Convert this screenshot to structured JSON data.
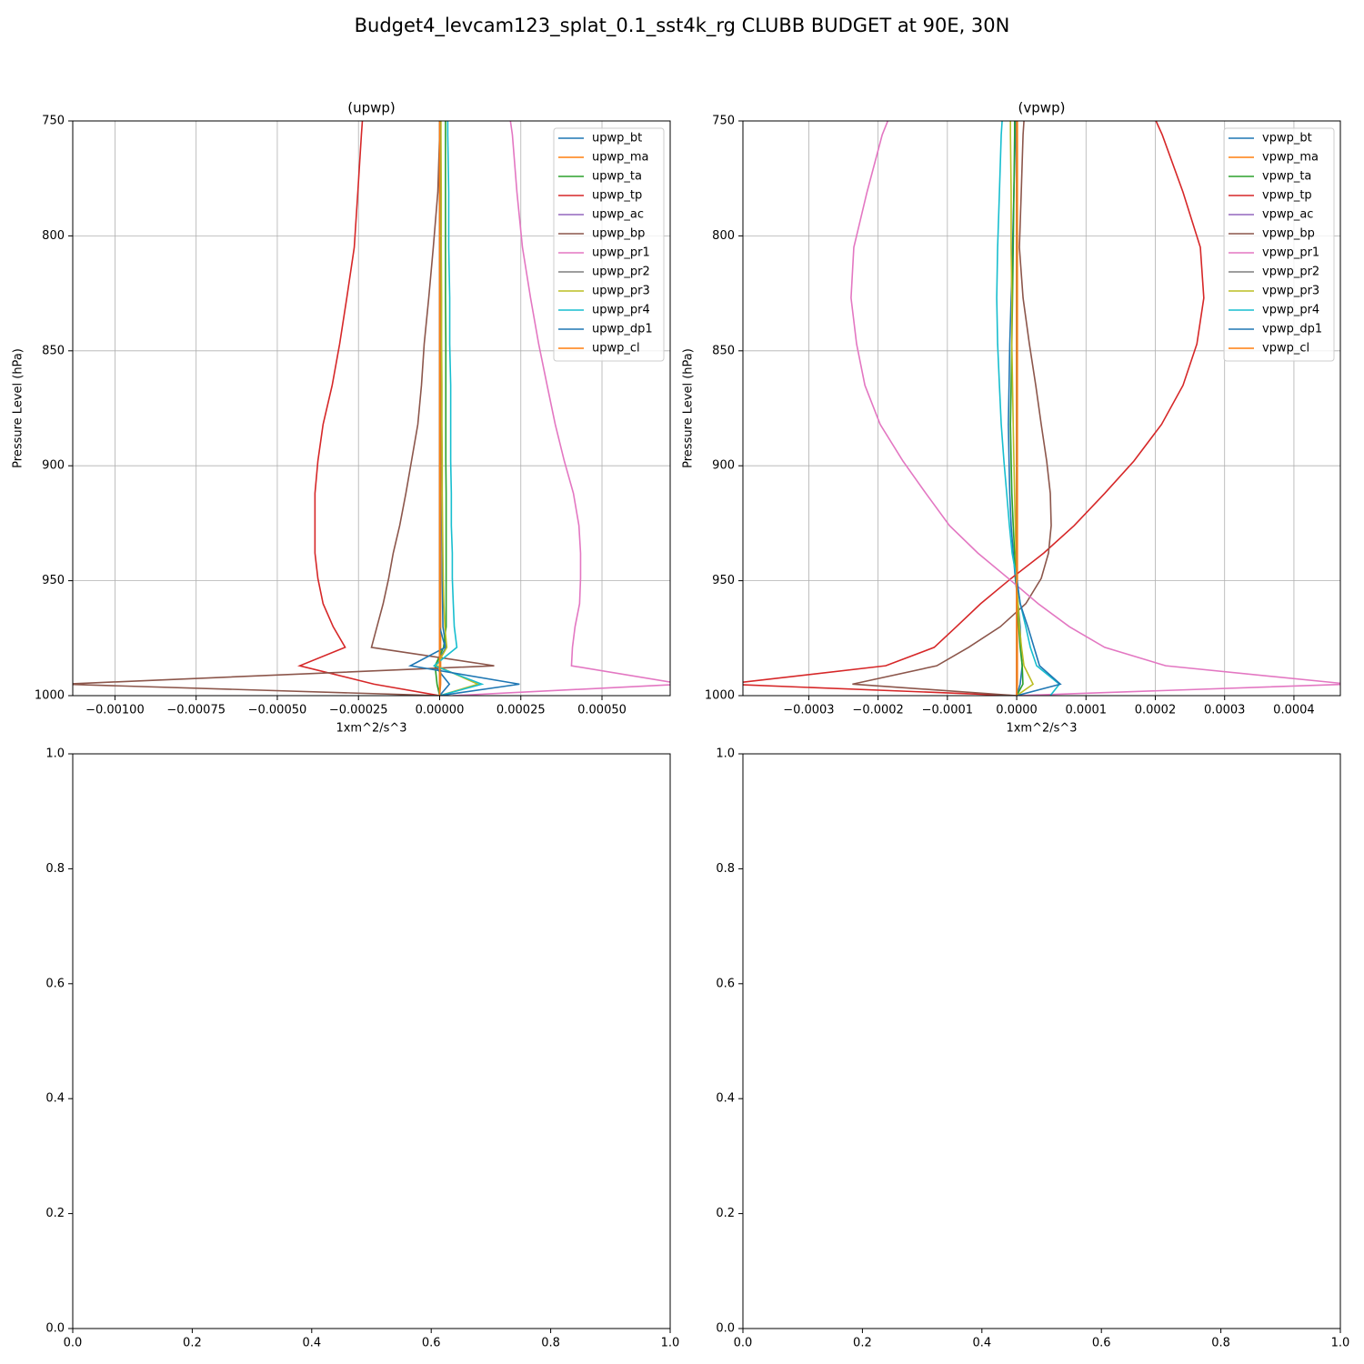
{
  "title": "Budget4_levcam123_splat_0.1_sst4k_rg CLUBB BUDGET at 90E, 30N",
  "chart_data": [
    {
      "type": "line",
      "title": "(upwp)",
      "xlabel": "1xm^2/s^3",
      "ylabel": "Pressure Level (hPa)",
      "xlim": [
        -0.00113,
        0.00071
      ],
      "ylim": [
        1000,
        750
      ],
      "xticks": [
        {
          "value": -0.001,
          "label": "−0.00100"
        },
        {
          "value": -0.00075,
          "label": "−0.00075"
        },
        {
          "value": -0.0005,
          "label": "−0.00050"
        },
        {
          "value": -0.00025,
          "label": "−0.00025"
        },
        {
          "value": 0,
          "label": "0.00000"
        },
        {
          "value": 0.00025,
          "label": "0.00025"
        },
        {
          "value": 0.0005,
          "label": "0.00050"
        }
      ],
      "yticks": [
        750,
        800,
        850,
        900,
        950,
        1000
      ],
      "grid": true,
      "legend": "upper right",
      "y": [
        750,
        756,
        781,
        805,
        827,
        847,
        865,
        882,
        898,
        912,
        926,
        938,
        949,
        960,
        970,
        979,
        987,
        995,
        1000
      ],
      "series": [
        {
          "name": "upwp_bt",
          "color": "#1f77b4",
          "values": [
            3e-06,
            3e-06,
            3e-06,
            4e-06,
            4e-06,
            5e-06,
            5e-06,
            6e-06,
            6e-06,
            7e-06,
            7e-06,
            8e-06,
            8e-06,
            9e-06,
            1e-05,
            2e-05,
            -1.5e-05,
            3e-05,
            0
          ]
        },
        {
          "name": "upwp_ma",
          "color": "#ff7f0e",
          "values": [
            3e-06,
            3e-06,
            3e-06,
            3e-06,
            3e-06,
            3e-06,
            3e-06,
            3e-06,
            3e-06,
            3e-06,
            3e-06,
            3e-06,
            3e-06,
            3e-06,
            3e-06,
            3e-06,
            3e-06,
            3e-06,
            0
          ]
        },
        {
          "name": "upwp_ta",
          "color": "#2ca02c",
          "values": [
            1.8e-05,
            1.8e-05,
            1.8e-05,
            1.8e-05,
            1.8e-05,
            1.9e-05,
            1.9e-05,
            1.9e-05,
            1.9e-05,
            2e-05,
            2e-05,
            2e-05,
            2e-05,
            2e-05,
            2e-05,
            1.2e-05,
            -1.4e-05,
            -8e-06,
            0
          ]
        },
        {
          "name": "upwp_tp",
          "color": "#d62728",
          "values": [
            -0.000238,
            -0.000241,
            -0.000252,
            -0.000263,
            -0.000286,
            -0.000308,
            -0.000331,
            -0.000359,
            -0.000375,
            -0.000384,
            -0.000384,
            -0.000384,
            -0.000375,
            -0.000359,
            -0.000328,
            -0.000291,
            -0.000431,
            -0.000202,
            0
          ]
        },
        {
          "name": "upwp_ac",
          "color": "#9467bd",
          "values": [
            0,
            0,
            0,
            0,
            0,
            0,
            0,
            0,
            0,
            0,
            0,
            0,
            0,
            0,
            0,
            0,
            0,
            0,
            0
          ]
        },
        {
          "name": "upwp_bp",
          "color": "#8c564b",
          "values": [
            3e-06,
            0,
            -5.6e-06,
            -1.96e-05,
            -3.36e-05,
            -4.76e-05,
            -5.6e-05,
            -6.72e-05,
            -8.68e-05,
            -0.000104,
            -0.000123,
            -0.000143,
            -0.000157,
            -0.000174,
            -0.000193,
            -0.00021,
            0.000168,
            -0.00116,
            0
          ]
        },
        {
          "name": "upwp_pr1",
          "color": "#e377c2",
          "values": [
            0.000218,
            0.000224,
            0.000238,
            0.000255,
            0.00028,
            0.000305,
            0.000331,
            0.000356,
            0.000384,
            0.000412,
            0.000429,
            0.000434,
            0.000434,
            0.000431,
            0.000417,
            0.000409,
            0.000406,
            0.00075,
            4e-05
          ]
        },
        {
          "name": "upwp_pr2",
          "color": "#7f7f7f",
          "values": [
            0,
            0,
            0,
            0,
            0,
            0,
            0,
            0,
            0,
            0,
            0,
            0,
            0,
            0,
            0,
            0,
            0,
            0,
            0
          ]
        },
        {
          "name": "upwp_pr3",
          "color": "#bcbd22",
          "values": [
            4e-06,
            4e-06,
            5e-06,
            5e-06,
            6e-06,
            6e-06,
            7e-06,
            7e-06,
            8e-06,
            8e-06,
            9e-06,
            1e-05,
            1.1e-05,
            1.3e-05,
            1.6e-05,
            2.2e-05,
            -1e-05,
            0.000118,
            0
          ]
        },
        {
          "name": "upwp_pr4",
          "color": "#17becf",
          "values": [
            2.5e-05,
            2.5e-05,
            2.8e-05,
            2.8e-05,
            3.1e-05,
            3.1e-05,
            3.4e-05,
            3.4e-05,
            3.4e-05,
            3.6e-05,
            3.6e-05,
            3.9e-05,
            3.9e-05,
            4.2e-05,
            4.5e-05,
            5.3e-05,
            -1.7e-05,
            0.00013,
            0
          ]
        },
        {
          "name": "upwp_dp1",
          "color": "#1f77b4",
          "values": [
            0,
            0,
            0,
            0,
            0,
            0,
            0,
            0,
            0,
            0,
            0,
            0,
            0,
            0,
            0,
            1.7e-05,
            -9e-05,
            0.000246,
            0
          ]
        },
        {
          "name": "upwp_cl",
          "color": "#ff7f0e",
          "values": [
            0,
            0,
            0,
            0,
            0,
            0,
            0,
            0,
            0,
            0,
            0,
            0,
            0,
            0,
            0,
            0,
            0,
            0,
            0
          ]
        }
      ]
    },
    {
      "type": "line",
      "title": "(vpwp)",
      "xlabel": "1xm^2/s^3",
      "ylabel": "Pressure Level (hPa)",
      "xlim": [
        -0.000395,
        0.000467
      ],
      "ylim": [
        1000,
        750
      ],
      "xticks": [
        {
          "value": -0.0003,
          "label": "−0.0003"
        },
        {
          "value": -0.0002,
          "label": "−0.0002"
        },
        {
          "value": -0.0001,
          "label": "−0.0001"
        },
        {
          "value": 0,
          "label": "0.0000"
        },
        {
          "value": 0.0001,
          "label": "0.0001"
        },
        {
          "value": 0.0002,
          "label": "0.0002"
        },
        {
          "value": 0.0003,
          "label": "0.0003"
        },
        {
          "value": 0.0004,
          "label": "0.0004"
        }
      ],
      "yticks": [
        750,
        800,
        850,
        900,
        950,
        1000
      ],
      "grid": true,
      "legend": "upper right",
      "y": [
        750,
        756,
        781,
        805,
        827,
        847,
        865,
        882,
        898,
        912,
        926,
        938,
        949,
        960,
        970,
        979,
        987,
        995,
        1000
      ],
      "series": [
        {
          "name": "vpwp_bt",
          "color": "#1f77b4",
          "values": [
            -2e-06,
            -2e-06,
            -4e-06,
            -6e-06,
            -8e-06,
            -1e-05,
            -1.1e-05,
            -1.2e-05,
            -1.1e-05,
            -1e-05,
            -8e-06,
            -5e-06,
            -2e-06,
            2e-06,
            5e-06,
            6e-06,
            8e-06,
            5e-06,
            0
          ]
        },
        {
          "name": "vpwp_ma",
          "color": "#ff7f0e",
          "values": [
            1e-06,
            1e-06,
            1e-06,
            1e-06,
            1e-06,
            1e-06,
            1e-06,
            1e-06,
            1e-06,
            1e-06,
            1e-06,
            1e-06,
            1e-06,
            1e-06,
            1e-06,
            1e-06,
            1e-06,
            1e-06,
            0
          ]
        },
        {
          "name": "vpwp_ta",
          "color": "#2ca02c",
          "values": [
            -3e-06,
            -3e-06,
            -4e-06,
            -5e-06,
            -6e-06,
            -7e-06,
            -8e-06,
            -9e-06,
            -8e-06,
            -7e-06,
            -5e-06,
            -3e-06,
            -1e-06,
            1e-06,
            3e-06,
            5e-06,
            8e-06,
            9e-06,
            0
          ]
        },
        {
          "name": "vpwp_tp",
          "color": "#d62728",
          "values": [
            0.000201,
            0.00021,
            0.00024,
            0.000265,
            0.00027,
            0.00026,
            0.00024,
            0.000209,
            0.000169,
            0.000127,
            8.3e-05,
            3.9e-05,
            -8e-06,
            -5.2e-05,
            -8.7e-05,
            -0.000119,
            -0.000189,
            -0.00042,
            0
          ]
        },
        {
          "name": "vpwp_ac",
          "color": "#9467bd",
          "values": [
            0,
            0,
            0,
            0,
            0,
            0,
            0,
            0,
            0,
            0,
            0,
            0,
            0,
            0,
            0,
            0,
            0,
            0,
            0
          ]
        },
        {
          "name": "vpwp_bp",
          "color": "#8c564b",
          "values": [
            1.05e-05,
            9.2e-06,
            6.6e-06,
            3.9e-06,
            9.2e-06,
            1.83e-05,
            2.75e-05,
            3.54e-05,
            4.33e-05,
            4.85e-05,
            4.98e-05,
            4.59e-05,
            3.54e-05,
            1.31e-05,
            -2.36e-05,
            -6.95e-05,
            -0.0001153,
            -0.000237,
            0
          ]
        },
        {
          "name": "vpwp_pr1",
          "color": "#e377c2",
          "values": [
            -0.000186,
            -0.000194,
            -0.000216,
            -0.000235,
            -0.000239,
            -0.000231,
            -0.000219,
            -0.000197,
            -0.000164,
            -0.000131,
            -9.7e-05,
            -5.6e-05,
            -1.2e-05,
            3.1e-05,
            7.6e-05,
            0.000127,
            0.000215,
            0.00048,
            0
          ]
        },
        {
          "name": "vpwp_pr2",
          "color": "#7f7f7f",
          "values": [
            0,
            0,
            0,
            0,
            0,
            0,
            0,
            0,
            0,
            0,
            0,
            0,
            0,
            0,
            0,
            0,
            0,
            0,
            0
          ]
        },
        {
          "name": "vpwp_pr3",
          "color": "#bcbd22",
          "values": [
            -9e-06,
            -9e-06,
            -8e-06,
            -8e-06,
            -7e-06,
            -7e-06,
            -6e-06,
            -5e-06,
            -4e-06,
            -3e-06,
            -2e-06,
            -1e-06,
            0,
            2e-06,
            4e-06,
            7e-06,
            1.05e-05,
            2.36e-05,
            0
          ]
        },
        {
          "name": "vpwp_pr4",
          "color": "#17becf",
          "values": [
            -2.1e-05,
            -2.23e-05,
            -2.49e-05,
            -2.75e-05,
            -2.88e-05,
            -2.75e-05,
            -2.49e-05,
            -2.23e-05,
            -1.84e-05,
            -1.44e-05,
            -1.05e-05,
            -6.6e-06,
            0,
            5.2e-06,
            1.31e-05,
            1.97e-05,
            2.88e-05,
            6.16e-05,
            4.85e-05
          ]
        },
        {
          "name": "vpwp_dp1",
          "color": "#1f77b4",
          "values": [
            0,
            0,
            0,
            0,
            0,
            0,
            0,
            0,
            0,
            0,
            0,
            0,
            0,
            5e-06,
            1.6e-05,
            2.5e-05,
            3.3e-05,
            6.3e-05,
            0
          ]
        },
        {
          "name": "vpwp_cl",
          "color": "#ff7f0e",
          "values": [
            0,
            0,
            0,
            0,
            0,
            0,
            0,
            0,
            0,
            0,
            0,
            0,
            0,
            0,
            0,
            0,
            0,
            0,
            0
          ]
        }
      ]
    },
    {
      "type": "line",
      "xlim": [
        0,
        1
      ],
      "ylim": [
        0,
        1
      ],
      "xticks": [
        {
          "value": 0,
          "label": "0.0"
        },
        {
          "value": 0.2,
          "label": "0.2"
        },
        {
          "value": 0.4,
          "label": "0.4"
        },
        {
          "value": 0.6,
          "label": "0.6"
        },
        {
          "value": 0.8,
          "label": "0.8"
        },
        {
          "value": 1,
          "label": "1.0"
        }
      ],
      "yticks": [
        {
          "value": 0,
          "label": "0.0"
        },
        {
          "value": 0.2,
          "label": "0.2"
        },
        {
          "value": 0.4,
          "label": "0.4"
        },
        {
          "value": 0.6,
          "label": "0.6"
        },
        {
          "value": 0.8,
          "label": "0.8"
        },
        {
          "value": 1,
          "label": "1.0"
        }
      ],
      "grid": false
    },
    {
      "type": "line",
      "xlim": [
        0,
        1
      ],
      "ylim": [
        0,
        1
      ],
      "xticks": [
        {
          "value": 0,
          "label": "0.0"
        },
        {
          "value": 0.2,
          "label": "0.2"
        },
        {
          "value": 0.4,
          "label": "0.4"
        },
        {
          "value": 0.6,
          "label": "0.6"
        },
        {
          "value": 0.8,
          "label": "0.8"
        },
        {
          "value": 1,
          "label": "1.0"
        }
      ],
      "yticks": [
        {
          "value": 0,
          "label": "0.0"
        },
        {
          "value": 0.2,
          "label": "0.2"
        },
        {
          "value": 0.4,
          "label": "0.4"
        },
        {
          "value": 0.6,
          "label": "0.6"
        },
        {
          "value": 0.8,
          "label": "0.8"
        },
        {
          "value": 1,
          "label": "1.0"
        }
      ],
      "grid": false
    }
  ]
}
